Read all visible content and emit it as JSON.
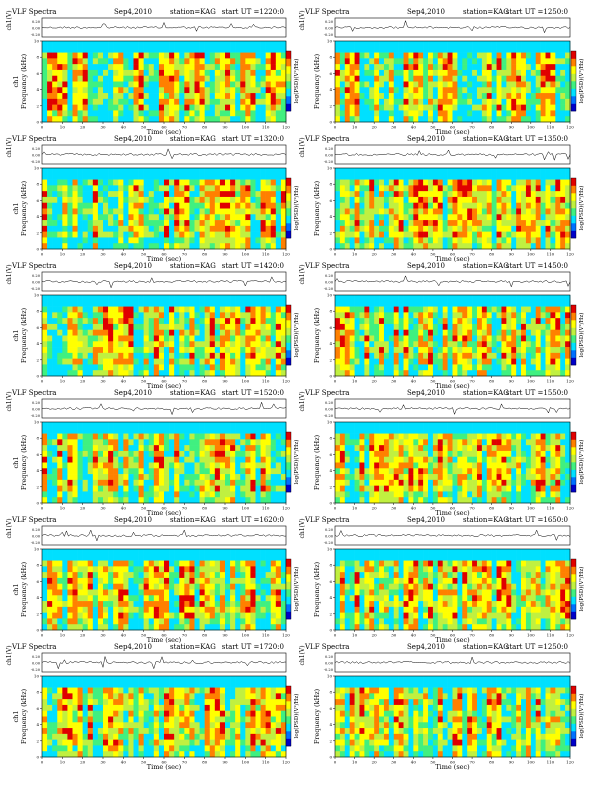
{
  "panels": [
    {
      "title": "VLF Spectra",
      "date": "Sep4,2010",
      "station": "station=KAG",
      "start": "start  UT =1220:0"
    },
    {
      "title": "VLF Spectra",
      "date": "Sep4,2010",
      "station": "station=KAG",
      "start": "start  UT =1250:0"
    },
    {
      "title": "VLF Spectra",
      "date": "Sep4,2010",
      "station": "station=KAG",
      "start": "start  UT =1320:0"
    },
    {
      "title": "VLF Spectra",
      "date": "Sep4,2010",
      "station": "station=KAG",
      "start": "start  UT =1350:0"
    },
    {
      "title": "VLF Spectra",
      "date": "Sep4,2010",
      "station": "station=KAG",
      "start": "start  UT =1420:0"
    },
    {
      "title": "VLF Spectra",
      "date": "Sep4,2010",
      "station": "station=KAG",
      "start": "start  UT =1450:0"
    },
    {
      "title": "VLF Spectra",
      "date": "Sep4,2010",
      "station": "station=KAG",
      "start": "start  UT =1520:0"
    },
    {
      "title": "VLF Spectra",
      "date": "Sep4,2010",
      "station": "station=KAG",
      "start": "start  UT =1550:0"
    },
    {
      "title": "VLF Spectra",
      "date": "Sep4,2010",
      "station": "station=KAG",
      "start": "start  UT =1620:0"
    },
    {
      "title": "VLF Spectra",
      "date": "Sep4,2010",
      "station": "station=KAG",
      "start": "start  UT =1650:0"
    },
    {
      "title": "VLF Spectra",
      "date": "Sep4,2010",
      "station": "station=KAG",
      "start": "start  UT =1720:0"
    },
    {
      "title": "VLF Spectra",
      "date": "Sep4,2010",
      "station": "station=KAG",
      "start": "start  UT =1250:0"
    }
  ],
  "chart_data": {
    "type": "heatmap",
    "panel_count": 12,
    "waveform_ylabel": "ch1(V)",
    "waveform_yticks": [
      "0.20",
      "0.00",
      "-0.20"
    ],
    "spectrogram_ylabel": "Frequency (kHz)",
    "channel_label": "ch1",
    "xlabel": "Time (sec)",
    "xlim": [
      0,
      120
    ],
    "xticks": [
      0,
      10,
      20,
      30,
      40,
      50,
      60,
      70,
      80,
      90,
      100,
      110,
      120
    ],
    "ylim_khz": [
      0,
      10
    ],
    "yticks_khz": [
      0,
      2,
      4,
      6,
      8,
      10
    ],
    "colorbar_label": "log(PSD)(V²/Hz)",
    "colormap": [
      "#0000c8",
      "#0070ff",
      "#00e0ff",
      "#40f080",
      "#c0f040",
      "#ffff00",
      "#ff8000",
      "#e00000"
    ],
    "notes": "Each panel shows a 120 s VLF waveform trace (top) and a 0-10 kHz spectrogram (bottom) with intermittent vertical red bursts; cyan band above ~9 kHz."
  }
}
